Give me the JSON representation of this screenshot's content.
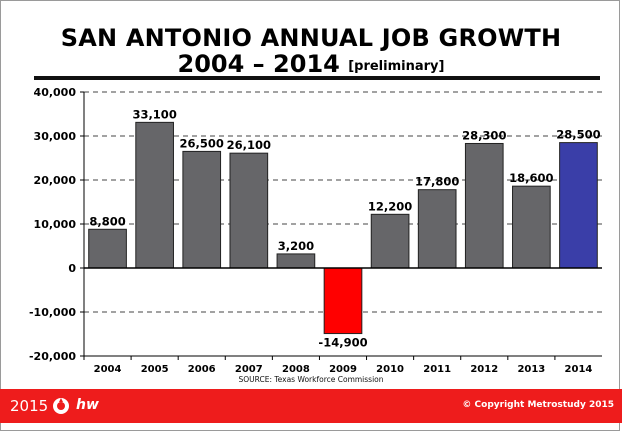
{
  "header": {
    "title_line1": "SAN ANTONIO ANNUAL JOB GROWTH",
    "title_line2": "2004 – 2014",
    "title_note": "[preliminary]"
  },
  "source_note": "SOURCE: Texas Workforce Commission",
  "footer": {
    "year": "2015",
    "logo_text": "hw",
    "copyright": "Copyright Metrostudy 2015",
    "copyright_symbol": "©",
    "background_color": "#ee1c1c"
  },
  "chart_data": {
    "type": "bar",
    "categories": [
      "2004",
      "2005",
      "2006",
      "2007",
      "2008",
      "2009",
      "2010",
      "2011",
      "2012",
      "2013",
      "2014"
    ],
    "values": [
      8800,
      33100,
      26500,
      26100,
      3200,
      -14900,
      12200,
      17800,
      28300,
      18600,
      28500
    ],
    "data_labels": [
      "8,800",
      "33,100",
      "26,500",
      "26,100",
      "3,200",
      "-14,900",
      "12,200",
      "17,800",
      "28,300",
      "18,600",
      "28,500"
    ],
    "ylim": [
      -20000,
      40000
    ],
    "yticks": [
      -20000,
      -10000,
      0,
      10000,
      20000,
      30000,
      40000
    ],
    "ytick_labels": [
      "-20,000",
      "-10,000",
      "0",
      "10,000",
      "20,000",
      "30,000",
      "40,000"
    ],
    "grid": "horizontal dashed",
    "colors": {
      "default": "#666669",
      "negative": "#ff0000",
      "highlight": "#3a3ea8"
    },
    "highlight_category": "2014"
  }
}
